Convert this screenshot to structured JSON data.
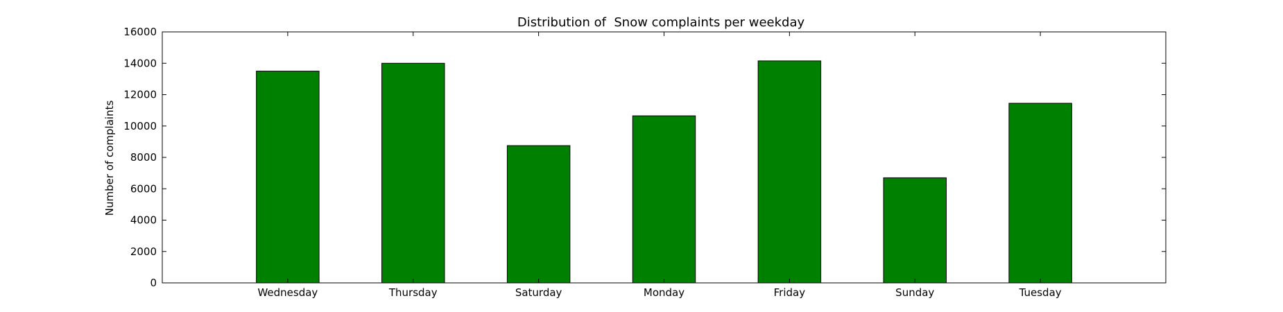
{
  "chart_data": {
    "type": "bar",
    "title": "Distribution of  Snow complaints per weekday",
    "xlabel": "",
    "ylabel": "Number of complaints",
    "categories": [
      "Wednesday",
      "Thursday",
      "Saturday",
      "Monday",
      "Friday",
      "Sunday",
      "Tuesday"
    ],
    "values": [
      13500,
      14000,
      8750,
      10650,
      14150,
      6700,
      11450
    ],
    "ylim": [
      0,
      16000
    ],
    "yticks": [
      0,
      2000,
      4000,
      6000,
      8000,
      10000,
      12000,
      14000,
      16000
    ],
    "bar_color": "#008000",
    "grid": false,
    "legend": "none"
  }
}
